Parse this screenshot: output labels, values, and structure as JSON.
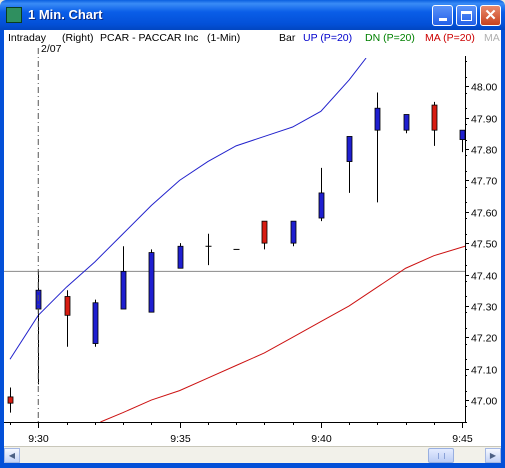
{
  "window": {
    "title": "1 Min. Chart",
    "icon": "chart-app-icon",
    "controls": [
      "minimize",
      "maximize",
      "close"
    ]
  },
  "header": {
    "mode": "Intraday",
    "scale_side": "(Right)",
    "symbol": "PCAR - PACCAR Inc",
    "interval": "(1-Min)",
    "date_label": "2/07",
    "legend": [
      {
        "label": "Bar",
        "color": "#000000"
      },
      {
        "label": "UP (P=20)",
        "color": "#0000cc"
      },
      {
        "label": "DN (P=20)",
        "color": "#008000"
      },
      {
        "label": "MA (P=20)",
        "color": "#cc0000"
      },
      {
        "label": "MA",
        "color": "#b0b0b0"
      }
    ]
  },
  "chart_data": {
    "type": "candlestick",
    "ylim": [
      46.93,
      48.09
    ],
    "yticks": [
      47.0,
      47.1,
      47.2,
      47.3,
      47.4,
      47.5,
      47.6,
      47.7,
      47.8,
      47.9,
      48.0
    ],
    "ytick_labels": [
      "47.00",
      "47.10",
      "47.20",
      "47.30",
      "47.40",
      "47.50",
      "47.60",
      "47.70",
      "47.80",
      "47.90",
      "48.00"
    ],
    "xticks": [
      {
        "label": "9:30",
        "minute": 0
      },
      {
        "label": "9:35",
        "minute": 5
      },
      {
        "label": "9:40",
        "minute": 10
      },
      {
        "label": "9:45",
        "minute": 15
      }
    ],
    "x_range_minutes": [
      -1,
      15.1
    ],
    "colors": {
      "up": "#1f1fd0",
      "down": "#d81d12",
      "wick": "#000000",
      "up_band": "#2222cc",
      "ma": "#cc1111",
      "hline": "#8a8a8a"
    },
    "candles": [
      {
        "t": -1,
        "o": 47.01,
        "h": 47.04,
        "l": 46.96,
        "c": 46.99
      },
      {
        "t": 0,
        "o": 47.29,
        "h": 47.41,
        "l": 47.05,
        "c": 47.35
      },
      {
        "t": 1,
        "o": 47.33,
        "h": 47.35,
        "l": 47.17,
        "c": 47.27
      },
      {
        "t": 2,
        "o": 47.18,
        "h": 47.32,
        "l": 47.17,
        "c": 47.31
      },
      {
        "t": 3,
        "o": 47.29,
        "h": 47.49,
        "l": 47.29,
        "c": 47.41
      },
      {
        "t": 4,
        "o": 47.28,
        "h": 47.48,
        "l": 47.28,
        "c": 47.47
      },
      {
        "t": 5,
        "o": 47.42,
        "h": 47.5,
        "l": 47.42,
        "c": 47.49
      },
      {
        "t": 6,
        "o": 47.49,
        "h": 47.53,
        "l": 47.43,
        "c": 47.49
      },
      {
        "t": 7,
        "o": 47.48,
        "h": 47.48,
        "l": 47.48,
        "c": 47.48
      },
      {
        "t": 8,
        "o": 47.57,
        "h": 47.57,
        "l": 47.48,
        "c": 47.5
      },
      {
        "t": 9,
        "o": 47.5,
        "h": 47.57,
        "l": 47.49,
        "c": 47.57
      },
      {
        "t": 10,
        "o": 47.58,
        "h": 47.74,
        "l": 47.57,
        "c": 47.66
      },
      {
        "t": 11,
        "o": 47.76,
        "h": 47.84,
        "l": 47.66,
        "c": 47.84
      },
      {
        "t": 12,
        "o": 47.86,
        "h": 47.98,
        "l": 47.63,
        "c": 47.93
      },
      {
        "t": 13,
        "o": 47.86,
        "h": 47.91,
        "l": 47.85,
        "c": 47.91
      },
      {
        "t": 14,
        "o": 47.94,
        "h": 47.95,
        "l": 47.81,
        "c": 47.86
      },
      {
        "t": 15,
        "o": 47.83,
        "h": 47.86,
        "l": 47.79,
        "c": 47.86
      }
    ],
    "up_band": [
      [
        -1,
        47.13
      ],
      [
        0,
        47.27
      ],
      [
        1,
        47.36
      ],
      [
        2,
        47.44
      ],
      [
        3,
        47.53
      ],
      [
        4,
        47.62
      ],
      [
        5,
        47.7
      ],
      [
        6,
        47.76
      ],
      [
        7,
        47.81
      ],
      [
        8,
        47.84
      ],
      [
        9,
        47.87
      ],
      [
        10,
        47.92
      ],
      [
        11,
        48.02
      ],
      [
        11.6,
        48.09
      ]
    ],
    "ma": [
      [
        2.2,
        46.93
      ],
      [
        3,
        46.96
      ],
      [
        4,
        47.0
      ],
      [
        5,
        47.03
      ],
      [
        6,
        47.07
      ],
      [
        7,
        47.11
      ],
      [
        8,
        47.15
      ],
      [
        9,
        47.2
      ],
      [
        10,
        47.25
      ],
      [
        11,
        47.3
      ],
      [
        12,
        47.36
      ],
      [
        13,
        47.42
      ],
      [
        14,
        47.46
      ],
      [
        15.1,
        47.49
      ]
    ],
    "hline": 47.41,
    "session_start_minute": 0
  },
  "scrollbar": {
    "left_arrow": "◀",
    "right_arrow": "▶"
  }
}
